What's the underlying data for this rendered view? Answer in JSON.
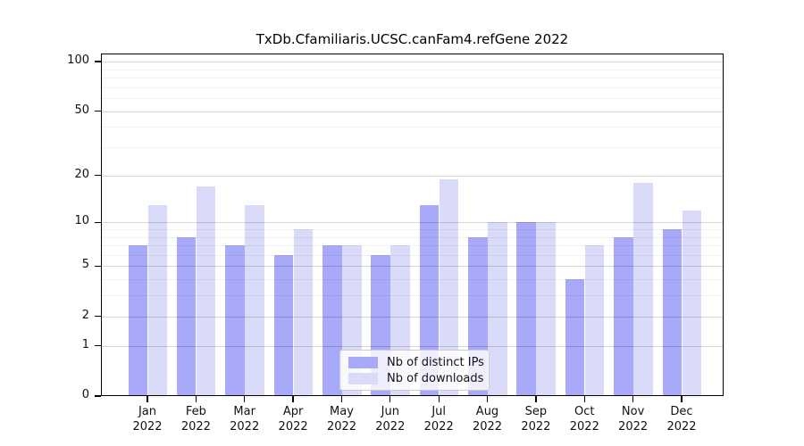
{
  "chart_data": {
    "type": "bar",
    "title": "TxDb.Cfamiliaris.UCSC.canFam4.refGene 2022",
    "categories": [
      "Jan",
      "Feb",
      "Mar",
      "Apr",
      "May",
      "Jun",
      "Jul",
      "Aug",
      "Sep",
      "Oct",
      "Nov",
      "Dec"
    ],
    "year": "2022",
    "series": [
      {
        "name": "Nb of distinct IPs",
        "color": "#a9a9f9",
        "values": [
          7,
          8,
          7,
          6,
          7,
          6,
          13,
          8,
          10,
          4,
          8,
          9
        ]
      },
      {
        "name": "Nb of downloads",
        "color": "#dadaf9",
        "values": [
          13,
          17,
          13,
          9,
          7,
          7,
          19,
          10,
          10,
          7,
          18,
          12
        ]
      }
    ],
    "yscale": "log1p",
    "yticks": [
      0,
      1,
      2,
      5,
      10,
      20,
      50,
      100
    ],
    "yticks_minor": [
      3,
      4,
      6,
      7,
      8,
      9,
      30,
      40,
      60,
      70,
      80,
      90
    ],
    "ylim": [
      0,
      100
    ],
    "xlabel": "",
    "ylabel": "",
    "grid": true,
    "legend_position": "bottom-center",
    "colors": {
      "background": "#ffffff",
      "axis": "#000000",
      "gridline_major": "rgba(0,0,0,0.16)",
      "gridline_minor": "rgba(0,0,0,0.055)",
      "tick_label": "#111111"
    }
  }
}
